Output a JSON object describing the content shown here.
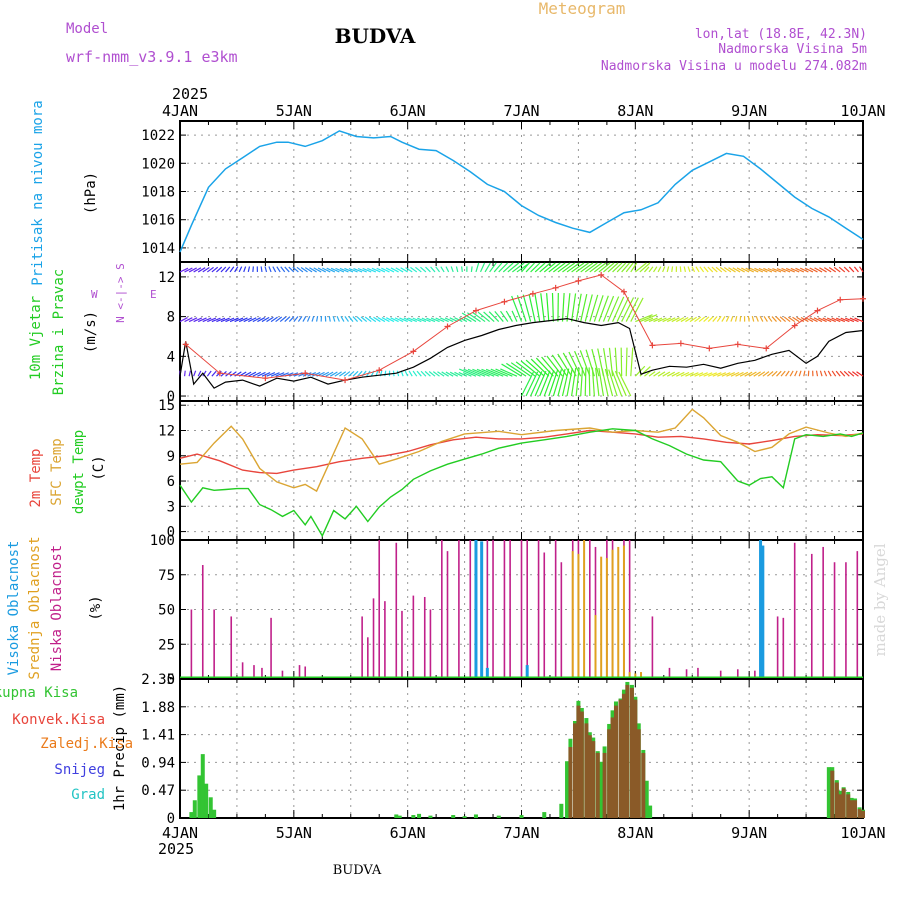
{
  "header": {
    "model_label": "Model",
    "model_name": "wrf-nmm_v3.9.1 e3km",
    "title": "Meteogram",
    "location": "BUDVA",
    "coords": "lon,lat (18.8E, 42.3N)",
    "elevation": "Nadmorska Visina 5m",
    "model_elevation": "Nadmorska Visina u modelu 274.082m",
    "year_top": "2025",
    "year_bottom": "2025",
    "footer_location": "BUDVA",
    "watermark": "made by Angel"
  },
  "colors": {
    "pressure": "#1aa3e8",
    "temp2m": "#e8453c",
    "sfc_temp": "#dba533",
    "dewpoint": "#22cc22",
    "wind_speed": "#000000",
    "wind_marker": "#e8453c",
    "cloud_high": "#1a9be0",
    "cloud_mid": "#e0a020",
    "cloud_low": "#c0208a",
    "precip_total": "#33c433",
    "precip_conv": "#8a5a28",
    "label_model": "#b04fd0",
    "label_title": "#e8b86a"
  },
  "x_axis": {
    "start_day": 4,
    "end_day": 10,
    "tick_labels": [
      "4JAN",
      "5JAN",
      "6JAN",
      "7JAN",
      "8JAN",
      "9JAN",
      "10JAN"
    ]
  },
  "chart_data": [
    {
      "id": "pressure",
      "type": "line",
      "ylabel_main": "Pritisak na nivou mora",
      "ylabel_unit": "(hPa)",
      "ylim": [
        1013,
        1023
      ],
      "yticks": [
        1014,
        1016,
        1018,
        1020,
        1022
      ],
      "x": [
        4.0,
        4.1,
        4.25,
        4.4,
        4.55,
        4.7,
        4.85,
        4.95,
        5.1,
        5.25,
        5.4,
        5.55,
        5.7,
        5.85,
        5.95,
        6.1,
        6.25,
        6.4,
        6.55,
        6.7,
        6.85,
        7.0,
        7.15,
        7.3,
        7.45,
        7.6,
        7.75,
        7.9,
        8.05,
        8.2,
        8.35,
        8.5,
        8.65,
        8.8,
        8.95,
        9.1,
        9.25,
        9.4,
        9.55,
        9.7,
        9.85,
        10.0
      ],
      "values": [
        1013.7,
        1015.6,
        1018.3,
        1019.6,
        1020.4,
        1021.2,
        1021.5,
        1021.5,
        1021.2,
        1021.6,
        1022.3,
        1021.9,
        1021.8,
        1021.9,
        1021.5,
        1021.0,
        1020.9,
        1020.2,
        1019.4,
        1018.5,
        1018.0,
        1017.0,
        1016.3,
        1015.8,
        1015.4,
        1015.1,
        1015.8,
        1016.5,
        1016.7,
        1017.2,
        1018.5,
        1019.5,
        1020.1,
        1020.7,
        1020.5,
        1019.6,
        1018.6,
        1017.6,
        1016.8,
        1016.2,
        1015.4,
        1014.6
      ]
    },
    {
      "id": "wind",
      "type": "line",
      "ylabel_main": "10m Vjetar",
      "ylabel_sub": "Brzina i Pravac",
      "ylabel_unit": "(m/s)",
      "compass_ns": "N <-|-> S",
      "compass_w": "W",
      "compass_e": "E",
      "ylim": [
        -0.5,
        13.5
      ],
      "yticks": [
        0,
        4,
        8,
        12
      ],
      "speed": {
        "x": [
          4.0,
          4.05,
          4.12,
          4.2,
          4.3,
          4.4,
          4.55,
          4.7,
          4.85,
          5.0,
          5.15,
          5.3,
          5.45,
          5.6,
          5.75,
          5.9,
          6.05,
          6.2,
          6.35,
          6.5,
          6.65,
          6.8,
          6.95,
          7.1,
          7.25,
          7.4,
          7.55,
          7.7,
          7.85,
          7.95,
          8.05,
          8.15,
          8.3,
          8.45,
          8.6,
          8.75,
          8.9,
          9.05,
          9.2,
          9.35,
          9.5,
          9.6,
          9.7,
          9.85,
          10.0
        ],
        "values": [
          2.0,
          5.5,
          1.2,
          2.3,
          0.8,
          1.4,
          1.6,
          1.0,
          1.8,
          1.5,
          1.9,
          1.2,
          1.6,
          1.9,
          2.1,
          2.3,
          2.9,
          3.8,
          4.9,
          5.6,
          6.1,
          6.7,
          7.1,
          7.4,
          7.6,
          7.8,
          7.4,
          7.1,
          7.4,
          6.8,
          2.2,
          2.6,
          3.0,
          2.9,
          3.2,
          2.8,
          3.3,
          3.6,
          4.2,
          4.6,
          3.3,
          4.0,
          5.5,
          6.4,
          6.6
        ]
      },
      "speed_markers": {
        "x": [
          4.05,
          4.35,
          4.75,
          5.1,
          5.45,
          5.75,
          6.05,
          6.35,
          6.6,
          6.85,
          7.1,
          7.3,
          7.5,
          7.7,
          7.9,
          8.15,
          8.4,
          8.65,
          8.9,
          9.15,
          9.4,
          9.6,
          9.8,
          10.0
        ],
        "values": [
          5.2,
          2.3,
          1.8,
          2.3,
          1.6,
          2.6,
          4.5,
          7.0,
          8.6,
          9.5,
          10.3,
          10.9,
          11.6,
          12.2,
          10.5,
          5.1,
          5.3,
          4.8,
          5.2,
          4.8,
          7.1,
          8.6,
          9.7,
          9.8
        ]
      },
      "barb_rows": {
        "row_levels": [
          2,
          7.5,
          12.5,
          0
        ],
        "start_x": 4.0,
        "end_x": 10.0
      }
    },
    {
      "id": "temperature",
      "type": "line",
      "ylabel_main": "2m Temp",
      "ylabel_sub1": "SFC Temp",
      "ylabel_sub2": "dewpt Temp",
      "ylabel_unit": "(C)",
      "ylim": [
        -1,
        15.5
      ],
      "yticks": [
        0,
        3,
        6,
        9,
        12,
        15
      ],
      "series": [
        {
          "name": "2m Temp",
          "x": [
            4.0,
            4.15,
            4.35,
            4.55,
            4.7,
            4.85,
            5.0,
            5.2,
            5.4,
            5.6,
            5.8,
            6.0,
            6.2,
            6.4,
            6.6,
            6.8,
            7.0,
            7.2,
            7.4,
            7.6,
            7.8,
            8.0,
            8.2,
            8.4,
            8.6,
            8.8,
            9.0,
            9.2,
            9.4,
            9.6,
            9.8,
            10.0
          ],
          "values": [
            8.7,
            9.2,
            8.4,
            7.3,
            7.0,
            6.9,
            7.3,
            7.7,
            8.3,
            8.7,
            9.0,
            9.5,
            10.3,
            10.9,
            11.2,
            11.0,
            11.0,
            11.2,
            11.6,
            12.0,
            11.8,
            11.6,
            11.2,
            11.3,
            11.0,
            10.6,
            10.4,
            10.8,
            11.3,
            11.5,
            11.4,
            11.6
          ]
        },
        {
          "name": "SFC Temp",
          "x": [
            4.0,
            4.15,
            4.3,
            4.45,
            4.55,
            4.7,
            4.85,
            5.0,
            5.1,
            5.2,
            5.3,
            5.45,
            5.6,
            5.75,
            5.9,
            6.1,
            6.3,
            6.5,
            6.8,
            7.0,
            7.3,
            7.6,
            7.8,
            8.0,
            8.2,
            8.35,
            8.5,
            8.6,
            8.75,
            8.9,
            9.05,
            9.2,
            9.35,
            9.5,
            9.7,
            9.85,
            10.0
          ],
          "values": [
            8.0,
            8.2,
            10.5,
            12.5,
            11.0,
            7.5,
            5.9,
            5.2,
            5.6,
            4.8,
            7.8,
            12.3,
            11.0,
            8.0,
            8.6,
            9.5,
            10.7,
            11.6,
            11.9,
            11.5,
            12.0,
            12.3,
            11.8,
            12.0,
            11.8,
            12.3,
            14.5,
            13.5,
            11.4,
            10.6,
            9.5,
            10.0,
            11.6,
            12.4,
            11.7,
            11.3,
            11.7
          ]
        },
        {
          "name": "dewpt Temp",
          "x": [
            4.0,
            4.1,
            4.2,
            4.3,
            4.4,
            4.5,
            4.6,
            4.7,
            4.8,
            4.9,
            5.0,
            5.1,
            5.15,
            5.25,
            5.35,
            5.45,
            5.55,
            5.65,
            5.75,
            5.85,
            5.95,
            6.05,
            6.2,
            6.35,
            6.5,
            6.65,
            6.8,
            7.0,
            7.2,
            7.4,
            7.6,
            7.8,
            8.0,
            8.15,
            8.3,
            8.45,
            8.6,
            8.75,
            8.9,
            9.0,
            9.1,
            9.2,
            9.3,
            9.4,
            9.5,
            9.65,
            9.8,
            9.9,
            10.0
          ],
          "values": [
            5.5,
            3.5,
            5.2,
            4.9,
            5.0,
            5.1,
            5.1,
            3.2,
            2.6,
            1.8,
            2.5,
            0.8,
            1.8,
            -0.5,
            2.5,
            1.5,
            3.0,
            1.2,
            2.9,
            4.1,
            5.0,
            6.2,
            7.2,
            8.0,
            8.6,
            9.2,
            9.9,
            10.5,
            10.9,
            11.3,
            11.8,
            12.2,
            12.0,
            11.0,
            10.2,
            9.2,
            8.5,
            8.3,
            6.0,
            5.5,
            6.3,
            6.5,
            5.2,
            11.0,
            11.5,
            11.3,
            11.6,
            11.3,
            11.7
          ]
        }
      ]
    },
    {
      "id": "clouds",
      "type": "bar",
      "ylabel_high": "Visoka Oblacnost",
      "ylabel_mid": "Srednja Oblacnost",
      "ylabel_low": "Niska Oblacnost",
      "ylabel_unit": "(%)",
      "ylim": [
        0,
        100
      ],
      "yticks": [
        0,
        25,
        50,
        75,
        100
      ],
      "low": {
        "x": [
          4.1,
          4.2,
          4.3,
          4.45,
          4.55,
          4.65,
          4.72,
          4.8,
          4.9,
          5.05,
          5.1,
          5.6,
          5.65,
          5.7,
          5.75,
          5.8,
          5.9,
          5.95,
          6.05,
          6.15,
          6.2,
          6.3,
          6.35,
          6.45,
          6.55,
          6.6,
          6.7,
          6.75,
          6.85,
          6.9,
          7.0,
          7.05,
          7.15,
          7.2,
          7.3,
          7.35,
          7.45,
          7.5,
          7.6,
          7.65,
          7.75,
          7.8,
          7.9,
          7.95,
          8.15,
          8.3,
          8.45,
          8.55,
          8.75,
          8.9,
          9.05,
          9.25,
          9.3,
          9.4,
          9.55,
          9.65,
          9.75,
          9.85,
          9.95
        ],
        "values": [
          50,
          82,
          50,
          45,
          12,
          10,
          8,
          44,
          6,
          10,
          9,
          45,
          30,
          58,
          100,
          56,
          98,
          49,
          60,
          59,
          50,
          100,
          92,
          100,
          100,
          99,
          100,
          100,
          100,
          100,
          100,
          100,
          100,
          91,
          100,
          84,
          100,
          100,
          100,
          95,
          100,
          100,
          100,
          100,
          45,
          8,
          7,
          8,
          6,
          7,
          6,
          45,
          44,
          98,
          90,
          95,
          84,
          84,
          92
        ]
      },
      "mid": {
        "x": [
          7.45,
          7.5,
          7.55,
          7.65,
          7.7,
          7.75,
          7.8,
          7.85,
          7.9,
          7.95,
          8.0,
          8.05
        ],
        "values": [
          92,
          90,
          100,
          46,
          88,
          87,
          93,
          95,
          96,
          5,
          4,
          5
        ]
      },
      "high": {
        "x": [
          6.6,
          6.65,
          6.7,
          7.05,
          9.1,
          9.12
        ],
        "values": [
          100,
          99,
          8,
          10,
          100,
          96
        ]
      }
    },
    {
      "id": "precip",
      "type": "bar",
      "ylabel_unit": "1hr Precip (mm)",
      "legend": [
        "Ukupna Kisa",
        "Konvek.Kisa",
        "Zaledj.Kisa",
        "Snijeg",
        "Grad"
      ],
      "legend_colors": [
        "#33c433",
        "#e8453c",
        "#ea7a1a",
        "#4040e0",
        "#22c4c4"
      ],
      "ylim": [
        0,
        2.35
      ],
      "yticks": [
        0,
        0.47,
        0.94,
        1.41,
        1.88,
        2.35
      ],
      "ytick_labels": [
        "0",
        "0.47",
        "0.94",
        "1.41",
        "1.88",
        "2.35"
      ],
      "total": {
        "x": [
          4.1,
          4.13,
          4.17,
          4.2,
          4.23,
          4.27,
          4.3,
          5.9,
          5.93,
          6.05,
          6.1,
          6.2,
          6.4,
          6.5,
          6.6,
          6.8,
          7.0,
          7.2,
          7.35,
          7.4,
          7.43,
          7.47,
          7.5,
          7.53,
          7.57,
          7.6,
          7.63,
          7.67,
          7.7,
          7.73,
          7.77,
          7.8,
          7.83,
          7.87,
          7.9,
          7.93,
          7.97,
          8.0,
          8.03,
          8.07,
          8.1,
          8.13,
          9.7,
          9.73,
          9.77,
          9.8,
          9.83,
          9.87,
          9.9,
          9.93,
          9.97,
          10.0
        ],
        "values": [
          0.1,
          0.3,
          0.72,
          1.08,
          0.58,
          0.35,
          0.14,
          0.06,
          0.04,
          0.05,
          0.07,
          0.04,
          0.05,
          0.03,
          0.06,
          0.04,
          0.05,
          0.1,
          0.24,
          0.96,
          1.34,
          1.64,
          1.98,
          1.86,
          1.69,
          1.45,
          1.36,
          1.13,
          0.95,
          1.21,
          1.59,
          1.82,
          1.97,
          2.02,
          2.17,
          2.3,
          2.25,
          2.05,
          1.6,
          1.15,
          0.63,
          0.21,
          0.86,
          0.86,
          0.64,
          0.46,
          0.52,
          0.44,
          0.34,
          0.33,
          0.18,
          0.14
        ]
      },
      "conv": {
        "x": [
          7.43,
          7.47,
          7.5,
          7.53,
          7.57,
          7.6,
          7.63,
          7.67,
          7.73,
          7.77,
          7.8,
          7.83,
          7.87,
          7.9,
          7.93,
          7.97,
          8.0,
          8.03,
          8.07,
          9.73,
          9.77,
          9.8,
          9.83,
          9.87,
          9.9,
          9.93,
          9.97,
          10.0
        ],
        "values": [
          1.2,
          1.6,
          1.9,
          1.8,
          1.6,
          1.4,
          1.3,
          1.1,
          1.1,
          1.5,
          1.7,
          1.9,
          2.0,
          2.1,
          2.25,
          2.2,
          2.0,
          1.5,
          1.1,
          0.8,
          0.6,
          0.4,
          0.5,
          0.4,
          0.3,
          0.3,
          0.15,
          0.12
        ]
      }
    }
  ]
}
